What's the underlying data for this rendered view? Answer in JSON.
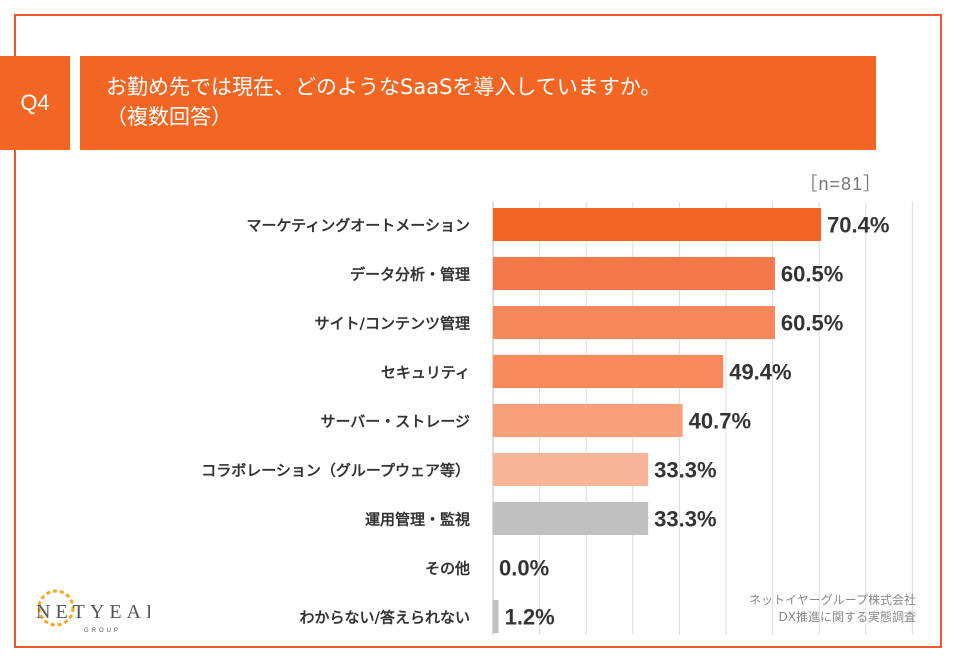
{
  "question": {
    "number": "Q4",
    "line1": "お勤め先では現在、どのようなSaaSを導入していますか。",
    "line2": "（複数回答）"
  },
  "sample_size": "［n=81］",
  "footer": {
    "company": "ネットイヤーグループ株式会社",
    "survey": "DX推進に関する実態調査"
  },
  "logo": {
    "brand": "NETYEAR",
    "sub": "GROUP"
  },
  "colors": {
    "accent": "#f26522",
    "bars": [
      "#f26522",
      "#f5784a",
      "#f7885c",
      "#f7895d",
      "#f8a07c",
      "#f9b59a",
      "#c0c0c0",
      "#c0c0c0",
      "#c0c0c0"
    ]
  },
  "chart_data": {
    "type": "bar",
    "orientation": "horizontal",
    "title": "お勤め先では現在、どのようなSaaSを導入していますか。（複数回答）",
    "xlabel": "",
    "ylabel": "",
    "xlim": [
      0,
      100
    ],
    "grid": true,
    "categories": [
      "マーケティングオートメーション",
      "データ分析・管理",
      "サイト/コンテンツ管理",
      "セキュリティ",
      "サーバー・ストレージ",
      "コラボレーション（グループウェア等）",
      "運用管理・監視",
      "その他",
      "わからない/答えられない"
    ],
    "values": [
      70.4,
      60.5,
      60.5,
      49.4,
      40.7,
      33.3,
      33.3,
      0.0,
      1.2
    ],
    "value_labels": [
      "70.4%",
      "60.5%",
      "60.5%",
      "49.4%",
      "40.7%",
      "33.3%",
      "33.3%",
      "0.0%",
      "1.2%"
    ]
  }
}
